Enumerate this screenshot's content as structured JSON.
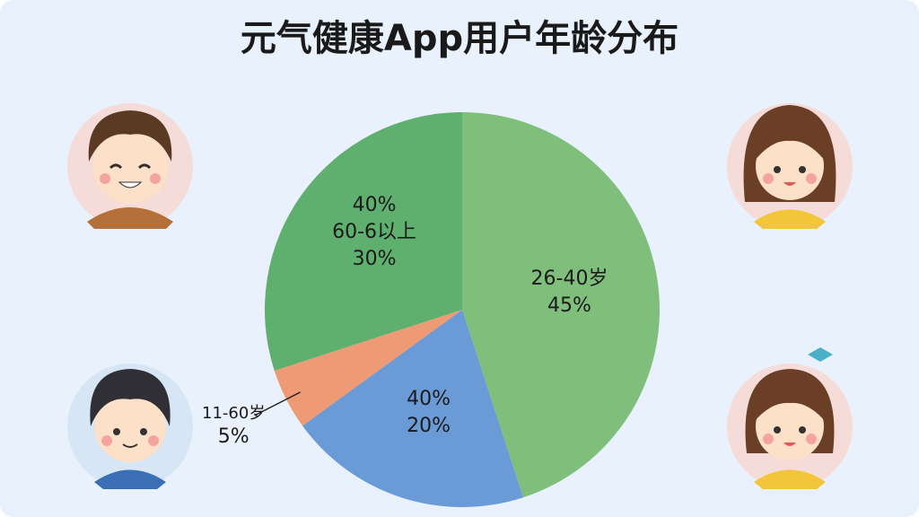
{
  "chart_data": {
    "type": "pie",
    "title": "元气健康App用户年龄分布",
    "categories": [
      "26-40岁",
      null,
      "11-60岁",
      "60-6以上"
    ],
    "values": [
      45,
      20,
      5,
      30
    ],
    "value_labels": [
      "45%",
      "20%",
      "5%",
      "30%"
    ],
    "colors": [
      "#7fbf7b",
      "#6b9bd6",
      "#ee9a74",
      "#5faf6f"
    ],
    "annotations": [
      "40%",
      "40%"
    ]
  }
}
